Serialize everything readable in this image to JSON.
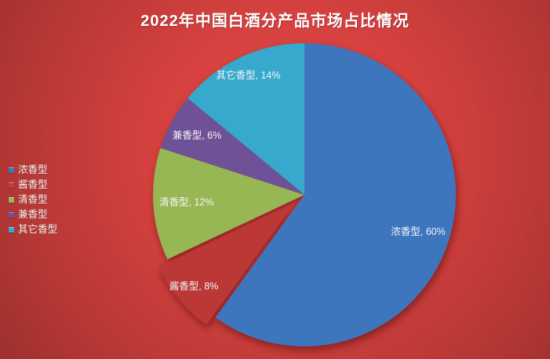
{
  "title": "2022年中国白酒分产品市场占比情况",
  "colors": {
    "background_center": "#e14945",
    "background_edge": "#9d302e",
    "title_text": "#ffffff",
    "label_text": "#f5f5f5"
  },
  "legend": {
    "position": "left",
    "items": [
      {
        "label": "浓香型",
        "color": "#3E76BE"
      },
      {
        "label": "酱香型",
        "color": "#C23C3A"
      },
      {
        "label": "清香型",
        "color": "#96B754"
      },
      {
        "label": "兼香型",
        "color": "#6F5197"
      },
      {
        "label": "其它香型",
        "color": "#36A9CD"
      }
    ]
  },
  "chart_data": {
    "type": "pie",
    "title": "2022年中国白酒分产品市场占比情况",
    "categories": [
      "浓香型",
      "酱香型",
      "清香型",
      "兼香型",
      "其它香型"
    ],
    "values": [
      60,
      8,
      12,
      6,
      14
    ],
    "unit": "%",
    "slice_colors": [
      "#3E76BE",
      "#BB3837",
      "#96B754",
      "#6F5197",
      "#36A9CD"
    ],
    "data_labels": [
      "浓香型, 60%",
      "酱香型, 8%",
      "清香型, 12%",
      "兼香型, 6%",
      "其它香型, 14%"
    ],
    "start_angle_deg_from_top": 0,
    "direction": "clockwise",
    "exploded_index": 1,
    "legend_position": "left",
    "grid": false
  }
}
